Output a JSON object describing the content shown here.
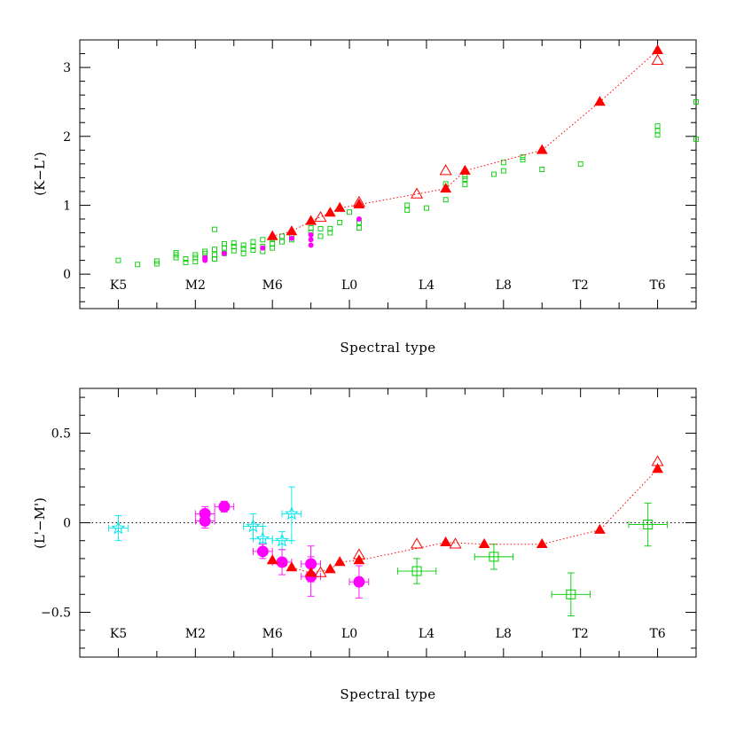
{
  "colors": {
    "model": "#ff0000",
    "model_line": "#ff0000",
    "field": "#00cc00",
    "magenta": "#ff00ff",
    "cyan": "#00e5ee",
    "axis": "#000000",
    "zero_line": "#000000"
  },
  "chart_data": [
    {
      "type": "scatter",
      "ylabel": "(K−L')",
      "xlabel": "Spectral type",
      "xlim": [
        -1,
        15
      ],
      "ylim": [
        -0.5,
        3.4
      ],
      "xticks": [
        {
          "x": 0,
          "label": "K5"
        },
        {
          "x": 2,
          "label": "M2"
        },
        {
          "x": 4,
          "label": "M6"
        },
        {
          "x": 6,
          "label": "L0"
        },
        {
          "x": 8,
          "label": "L4"
        },
        {
          "x": 10,
          "label": "L8"
        },
        {
          "x": 12,
          "label": "T2"
        },
        {
          "x": 14,
          "label": "T6"
        }
      ],
      "yticks": [
        {
          "y": 0,
          "label": "0"
        },
        {
          "y": 1,
          "label": "1"
        },
        {
          "y": 2,
          "label": "2"
        },
        {
          "y": 3,
          "label": "3"
        }
      ],
      "field_squares": [
        [
          0.0,
          0.2
        ],
        [
          0.5,
          0.14
        ],
        [
          1.0,
          0.15
        ],
        [
          1.0,
          0.19
        ],
        [
          1.5,
          0.24
        ],
        [
          1.5,
          0.28
        ],
        [
          1.5,
          0.31
        ],
        [
          1.75,
          0.17
        ],
        [
          1.75,
          0.22
        ],
        [
          2.0,
          0.18
        ],
        [
          2.0,
          0.24
        ],
        [
          2.0,
          0.28
        ],
        [
          2.25,
          0.24
        ],
        [
          2.25,
          0.3
        ],
        [
          2.25,
          0.33
        ],
        [
          2.5,
          0.22
        ],
        [
          2.5,
          0.28
        ],
        [
          2.5,
          0.36
        ],
        [
          2.5,
          0.65
        ],
        [
          2.75,
          0.3
        ],
        [
          2.75,
          0.38
        ],
        [
          2.75,
          0.44
        ],
        [
          3.0,
          0.34
        ],
        [
          3.0,
          0.4
        ],
        [
          3.0,
          0.45
        ],
        [
          3.25,
          0.3
        ],
        [
          3.25,
          0.37
        ],
        [
          3.25,
          0.42
        ],
        [
          3.5,
          0.35
        ],
        [
          3.5,
          0.4
        ],
        [
          3.5,
          0.47
        ],
        [
          3.75,
          0.33
        ],
        [
          3.75,
          0.4
        ],
        [
          3.75,
          0.5
        ],
        [
          4.0,
          0.38
        ],
        [
          4.0,
          0.44
        ],
        [
          4.0,
          0.52
        ],
        [
          4.25,
          0.47
        ],
        [
          4.25,
          0.55
        ],
        [
          4.5,
          0.5
        ],
        [
          4.5,
          0.57
        ],
        [
          5.0,
          0.6
        ],
        [
          5.0,
          0.67
        ],
        [
          5.25,
          0.55
        ],
        [
          5.25,
          0.66
        ],
        [
          5.5,
          0.6
        ],
        [
          5.5,
          0.66
        ],
        [
          5.75,
          0.75
        ],
        [
          6.0,
          0.9
        ],
        [
          6.25,
          0.67
        ],
        [
          6.25,
          0.75
        ],
        [
          7.5,
          0.93
        ],
        [
          7.5,
          1.0
        ],
        [
          8.0,
          0.96
        ],
        [
          8.5,
          1.08
        ],
        [
          8.5,
          1.31
        ],
        [
          9.0,
          1.3
        ],
        [
          9.0,
          1.38
        ],
        [
          9.0,
          1.42
        ],
        [
          9.75,
          1.45
        ],
        [
          10.0,
          1.5
        ],
        [
          10.0,
          1.62
        ],
        [
          10.5,
          1.66
        ],
        [
          10.5,
          1.7
        ],
        [
          11.0,
          1.52
        ],
        [
          12.0,
          1.6
        ],
        [
          14.0,
          2.02
        ],
        [
          14.0,
          2.08
        ],
        [
          14.0,
          2.15
        ],
        [
          15.0,
          1.96
        ],
        [
          15.0,
          2.5
        ]
      ],
      "magenta_dots": [
        [
          2.25,
          0.2
        ],
        [
          2.25,
          0.24
        ],
        [
          2.75,
          0.3
        ],
        [
          3.75,
          0.38
        ],
        [
          4.5,
          0.52
        ],
        [
          5.0,
          0.42
        ],
        [
          5.0,
          0.5
        ],
        [
          5.0,
          0.57
        ],
        [
          6.25,
          0.8
        ]
      ],
      "model_filled": [
        [
          4.0,
          0.55
        ],
        [
          4.5,
          0.62
        ],
        [
          5.0,
          0.77
        ],
        [
          5.5,
          0.89
        ],
        [
          5.75,
          0.96
        ],
        [
          6.25,
          1.01
        ],
        [
          8.5,
          1.24
        ],
        [
          9.0,
          1.5
        ],
        [
          11.0,
          1.8
        ],
        [
          12.5,
          2.5
        ],
        [
          14.0,
          3.25
        ]
      ],
      "model_open": [
        [
          5.25,
          0.82
        ],
        [
          6.25,
          1.04
        ],
        [
          7.75,
          1.16
        ],
        [
          8.5,
          1.5
        ],
        [
          14.0,
          3.1
        ]
      ],
      "model_line": [
        [
          4.0,
          0.55
        ],
        [
          4.5,
          0.62
        ],
        [
          5.0,
          0.77
        ],
        [
          5.5,
          0.89
        ],
        [
          5.75,
          0.96
        ],
        [
          6.25,
          1.01
        ],
        [
          8.5,
          1.24
        ],
        [
          9.0,
          1.5
        ],
        [
          11.0,
          1.8
        ],
        [
          12.5,
          2.5
        ],
        [
          14.0,
          3.25
        ]
      ]
    },
    {
      "type": "scatter",
      "ylabel": "(L'−M')",
      "xlabel": "Spectral type",
      "xlim": [
        -1,
        15
      ],
      "ylim": [
        -0.75,
        0.75
      ],
      "zero_line": 0,
      "xticks": [
        {
          "x": 0,
          "label": "K5"
        },
        {
          "x": 2,
          "label": "M2"
        },
        {
          "x": 4,
          "label": "M6"
        },
        {
          "x": 6,
          "label": "L0"
        },
        {
          "x": 8,
          "label": "L4"
        },
        {
          "x": 10,
          "label": "L8"
        },
        {
          "x": 12,
          "label": "T2"
        },
        {
          "x": 14,
          "label": "T6"
        }
      ],
      "yticks": [
        {
          "y": -0.5,
          "label": "−0.5"
        },
        {
          "y": 0,
          "label": "0"
        },
        {
          "y": 0.5,
          "label": "0.5"
        }
      ],
      "cyan_stars": [
        {
          "x": 0.0,
          "y": -0.03,
          "xerr": 0.25,
          "yerr": 0.07
        },
        {
          "x": 3.5,
          "y": -0.02,
          "xerr": 0.25,
          "yerr": 0.07
        },
        {
          "x": 3.75,
          "y": -0.09,
          "xerr": 0.25,
          "yerr": 0.07
        },
        {
          "x": 4.25,
          "y": -0.1,
          "xerr": 0.25,
          "yerr": 0.05
        },
        {
          "x": 4.5,
          "y": 0.05,
          "xerr": 0.25,
          "yerr": 0.15
        }
      ],
      "magenta_dots": [
        {
          "x": 2.25,
          "y": 0.05,
          "xerr": 0.25,
          "yerr": 0.04
        },
        {
          "x": 2.25,
          "y": 0.01,
          "xerr": 0.25,
          "yerr": 0.04
        },
        {
          "x": 2.75,
          "y": 0.09,
          "xerr": 0.25,
          "yerr": 0.03
        },
        {
          "x": 3.75,
          "y": -0.16,
          "xerr": 0.25,
          "yerr": 0.04
        },
        {
          "x": 4.25,
          "y": -0.22,
          "xerr": 0.25,
          "yerr": 0.07
        },
        {
          "x": 5.0,
          "y": -0.23,
          "xerr": 0.25,
          "yerr": 0.1
        },
        {
          "x": 5.0,
          "y": -0.3,
          "xerr": 0.25,
          "yerr": 0.11
        },
        {
          "x": 6.25,
          "y": -0.33,
          "xerr": 0.25,
          "yerr": 0.09
        }
      ],
      "field_squares": [
        {
          "x": 7.75,
          "y": -0.27,
          "xerr": 0.5,
          "yerr": 0.07
        },
        {
          "x": 9.75,
          "y": -0.19,
          "xerr": 0.5,
          "yerr": 0.07
        },
        {
          "x": 11.75,
          "y": -0.4,
          "xerr": 0.5,
          "yerr": 0.12
        },
        {
          "x": 13.75,
          "y": -0.01,
          "xerr": 0.5,
          "yerr": 0.12
        }
      ],
      "model_filled": [
        [
          4.0,
          -0.21
        ],
        [
          4.5,
          -0.25
        ],
        [
          5.0,
          -0.28
        ],
        [
          5.5,
          -0.26
        ],
        [
          5.75,
          -0.22
        ],
        [
          6.25,
          -0.21
        ],
        [
          8.5,
          -0.11
        ],
        [
          9.5,
          -0.12
        ],
        [
          11.0,
          -0.12
        ],
        [
          12.5,
          -0.04
        ],
        [
          14.0,
          0.3
        ]
      ],
      "model_open": [
        [
          5.25,
          -0.28
        ],
        [
          6.25,
          -0.18
        ],
        [
          7.75,
          -0.12
        ],
        [
          8.75,
          -0.12
        ],
        [
          14.0,
          0.34
        ]
      ],
      "model_line": [
        [
          4.0,
          -0.21
        ],
        [
          4.5,
          -0.25
        ],
        [
          5.0,
          -0.28
        ],
        [
          5.5,
          -0.26
        ],
        [
          5.75,
          -0.22
        ],
        [
          6.25,
          -0.21
        ],
        [
          8.5,
          -0.11
        ],
        [
          9.5,
          -0.12
        ],
        [
          11.0,
          -0.12
        ],
        [
          12.5,
          -0.04
        ],
        [
          14.0,
          0.3
        ]
      ]
    }
  ]
}
